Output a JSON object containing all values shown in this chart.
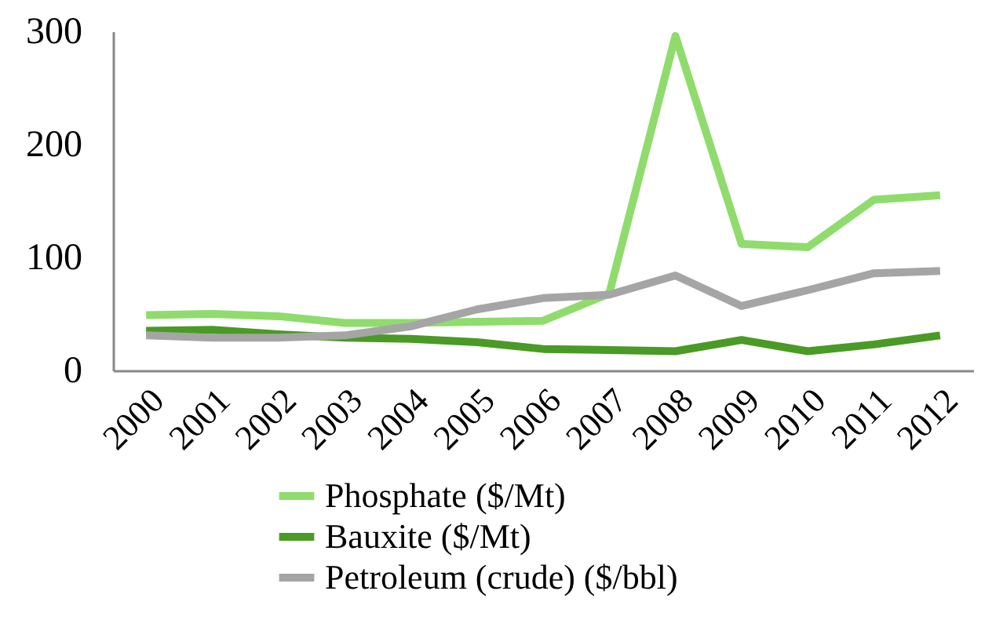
{
  "chart_data": {
    "type": "line",
    "categories": [
      "2000",
      "2001",
      "2002",
      "2003",
      "2004",
      "2005",
      "2006",
      "2007",
      "2008",
      "2009",
      "2010",
      "2011",
      "2012"
    ],
    "series": [
      {
        "name": "Phosphate ($/Mt)",
        "color": "#8fdc6c",
        "values": [
          49,
          50,
          48,
          42,
          42,
          43,
          44,
          68,
          296,
          112,
          109,
          151,
          155
        ]
      },
      {
        "name": "Bauxite ($/Mt)",
        "color": "#4a9a26",
        "values": [
          35,
          36,
          32,
          29,
          28,
          25,
          19,
          18,
          17,
          27,
          17,
          23,
          31
        ]
      },
      {
        "name": "Petroleum (crude) ($/bbl)",
        "color": "#a5a5a5",
        "values": [
          31,
          29,
          29,
          31,
          39,
          54,
          64,
          67,
          84,
          57,
          71,
          86,
          88
        ]
      }
    ],
    "ylim": [
      0,
      300
    ],
    "yticks": [
      0,
      100,
      200,
      300
    ],
    "grid": false,
    "legend": "bottom",
    "marker": "none",
    "line_style": "solid"
  }
}
